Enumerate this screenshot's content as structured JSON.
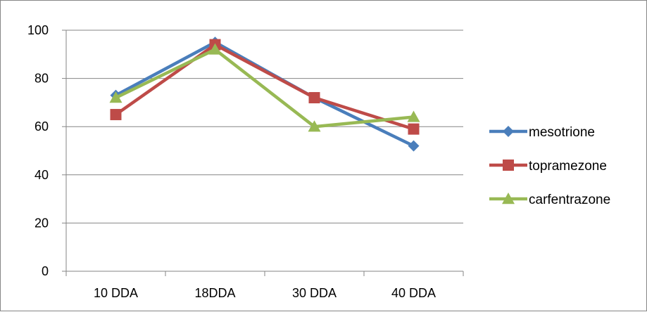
{
  "chart_data": {
    "type": "line",
    "title": "",
    "xlabel": "",
    "ylabel": "",
    "categories": [
      "10 DDA",
      "18DDA",
      "30 DDA",
      "40 DDA"
    ],
    "ylim": [
      0,
      100
    ],
    "yticks": [
      0,
      20,
      40,
      60,
      80,
      100
    ],
    "grid": "horizontal",
    "legend_position": "right",
    "series": [
      {
        "name": "mesotrione",
        "values": [
          73,
          95,
          72,
          52
        ],
        "color": "#4A7EBB",
        "marker": "diamond"
      },
      {
        "name": "topramezone",
        "values": [
          65,
          94,
          72,
          59
        ],
        "color": "#BE4B48",
        "marker": "square"
      },
      {
        "name": "carfentrazone",
        "values": [
          72,
          92,
          60,
          64
        ],
        "color": "#98B954",
        "marker": "triangle"
      }
    ]
  }
}
